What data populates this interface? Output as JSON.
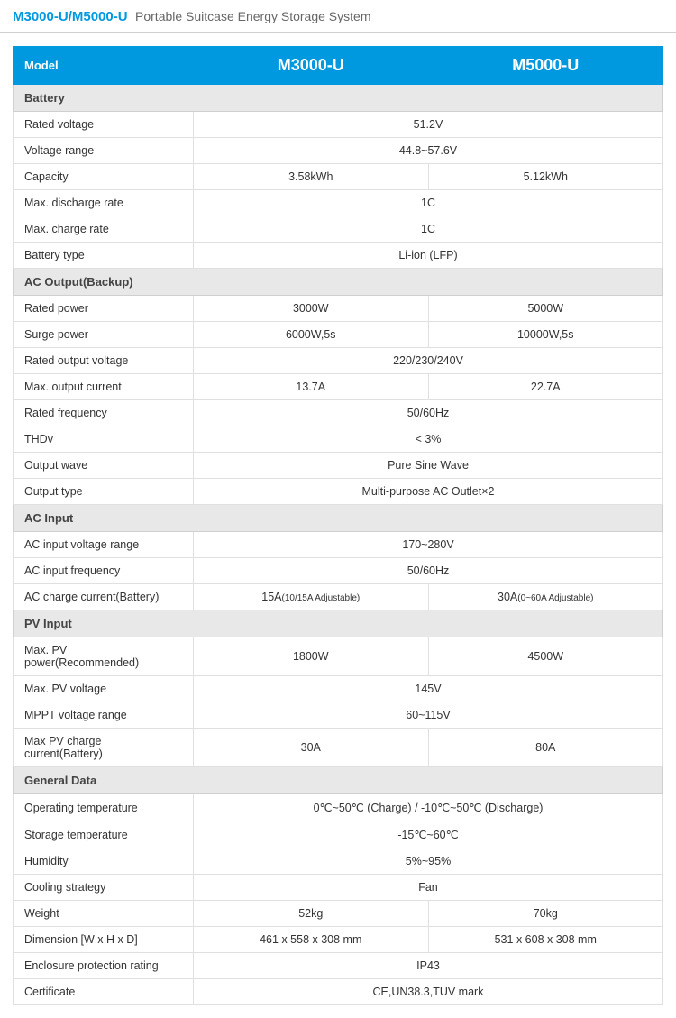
{
  "colors": {
    "header_bg": "#0099e0",
    "header_text": "#ffffff",
    "section_bg": "#e8e8e8",
    "section_text": "#444444",
    "row_border": "#e0e0e0",
    "text": "#333333",
    "title_accent": "#0099e0",
    "title_sub": "#666666"
  },
  "page_title": {
    "code": "M3000-U/M5000-U",
    "desc": "Portable Suitcase Energy Storage System"
  },
  "columns": {
    "label": "Model",
    "c1": "M3000-U",
    "c2": "M5000-U"
  },
  "sections": [
    {
      "title": "Battery",
      "rows": [
        {
          "label": "Rated voltage",
          "span": "51.2V"
        },
        {
          "label": "Voltage range",
          "span": "44.8~57.6V"
        },
        {
          "label": "Capacity",
          "c1": "3.58kWh",
          "c2": "5.12kWh"
        },
        {
          "label": "Max. discharge rate",
          "span": "1C"
        },
        {
          "label": "Max. charge rate",
          "span": "1C"
        },
        {
          "label": "Battery type",
          "span": "Li-ion (LFP)"
        }
      ]
    },
    {
      "title": "AC Output(Backup)",
      "rows": [
        {
          "label": "Rated power",
          "c1": "3000W",
          "c2": "5000W"
        },
        {
          "label": "Surge power",
          "c1": "6000W,5s",
          "c2": "10000W,5s"
        },
        {
          "label": "Rated output voltage",
          "span": "220/230/240V"
        },
        {
          "label": "Max. output current",
          "c1": "13.7A",
          "c2": "22.7A"
        },
        {
          "label": "Rated frequency",
          "span": "50/60Hz"
        },
        {
          "label": "THDv",
          "span": "< 3%"
        },
        {
          "label": "Output wave",
          "span": "Pure Sine Wave"
        },
        {
          "label": "Output type",
          "span": "Multi-purpose AC Outlet×2"
        }
      ]
    },
    {
      "title": "AC Input",
      "rows": [
        {
          "label": "AC input voltage range",
          "span": "170~280V"
        },
        {
          "label": "AC input frequency",
          "span": "50/60Hz"
        },
        {
          "label": "AC charge current(Battery)",
          "c1": "15A",
          "c1sub": "(10/15A Adjustable)",
          "c2": "30A",
          "c2sub": "(0~60A Adjustable)"
        }
      ]
    },
    {
      "title": "PV Input",
      "rows": [
        {
          "label": "Max. PV power(Recommended)",
          "c1": "1800W",
          "c2": "4500W"
        },
        {
          "label": "Max. PV voltage",
          "span": "145V"
        },
        {
          "label": "MPPT voltage range",
          "span": "60~115V"
        },
        {
          "label": "Max PV charge current(Battery)",
          "c1": "30A",
          "c2": "80A"
        }
      ]
    },
    {
      "title": "General Data",
      "rows": [
        {
          "label": "Operating temperature",
          "span": "0℃~50℃ (Charge) / -10℃~50℃ (Discharge)"
        },
        {
          "label": "Storage temperature",
          "span": "-15℃~60℃"
        },
        {
          "label": "Humidity",
          "span": "5%~95%"
        },
        {
          "label": "Cooling strategy",
          "span": "Fan"
        },
        {
          "label": "Weight",
          "c1": "52kg",
          "c2": "70kg"
        },
        {
          "label": "Dimension [W x H x D]",
          "c1": "461 x 558 x 308 mm",
          "c2": "531 x 608 x 308 mm"
        },
        {
          "label": "Enclosure protection rating",
          "span": "IP43"
        },
        {
          "label": "Certificate",
          "span": "CE,UN38.3,TUV mark"
        }
      ]
    }
  ]
}
